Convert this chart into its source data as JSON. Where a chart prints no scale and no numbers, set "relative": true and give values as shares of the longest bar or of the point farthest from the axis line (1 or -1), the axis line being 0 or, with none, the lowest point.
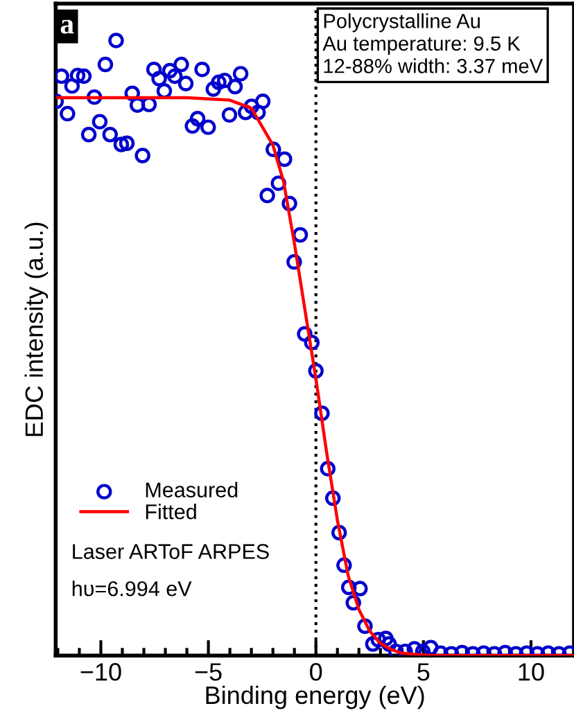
{
  "chart_data": {
    "type": "scatter",
    "xlabel": "Binding energy (eV)",
    "ylabel": "EDC intensity (a.u.)",
    "relative": true,
    "xlim": [
      -12.1,
      12
    ],
    "xticks": [
      {
        "value": -10,
        "label": "−10"
      },
      {
        "value": -5,
        "label": "−5"
      },
      0,
      5,
      10
    ],
    "tick_labels": "x",
    "grid": false,
    "legend": "bottom left",
    "annotations": [
      "a",
      "Polycrystalline Au\nAu temperature: 9.5 K\n12-88% width: 3.37 meV",
      "Laser ARToF ARPES",
      "hυ=6.994 eV"
    ],
    "ref_lines": [
      {
        "axis": "x",
        "value": 0,
        "label": null,
        "color": "#000000",
        "line_style": "dotted"
      }
    ],
    "series": [
      {
        "name": "Measured",
        "color": "#0000cc",
        "marker": "circle",
        "x": [
          -12.08,
          -11.83,
          -11.55,
          -11.34,
          -11.08,
          -10.79,
          -10.56,
          -10.3,
          -10.05,
          -9.79,
          -9.57,
          -9.29,
          -9.05,
          -8.79,
          -8.54,
          -8.3,
          -8.06,
          -7.76,
          -7.53,
          -7.29,
          -7.05,
          -6.79,
          -6.56,
          -6.26,
          -6.05,
          -5.74,
          -5.5,
          -5.29,
          -5.01,
          -4.77,
          -4.52,
          -4.24,
          -4.02,
          -3.76,
          -3.5,
          -3.27,
          -2.99,
          -2.69,
          -2.47,
          -2.26,
          -1.98,
          -1.74,
          -1.46,
          -1.23,
          -1.01,
          -0.73,
          -0.52,
          -0.19,
          0,
          0.28,
          0.55,
          0.79,
          1.08,
          1.31,
          1.53,
          1.74,
          2.05,
          2.28,
          2.65,
          2.9,
          3.25,
          3.4,
          3.72,
          4.15,
          4.58,
          4.97,
          5.34,
          5.8,
          6.3,
          6.8,
          7.3,
          7.8,
          8.3,
          8.8,
          9.3,
          9.8,
          10.3,
          10.8,
          11.3,
          11.8
        ],
        "values": [
          0.901,
          0.942,
          0.881,
          0.926,
          0.943,
          0.942,
          0.847,
          0.908,
          0.868,
          0.961,
          0.847,
          1.0,
          0.831,
          0.833,
          0.914,
          0.895,
          0.813,
          0.896,
          0.953,
          0.938,
          0.918,
          0.951,
          0.942,
          0.961,
          0.93,
          0.861,
          0.873,
          0.953,
          0.859,
          0.921,
          0.932,
          0.935,
          0.879,
          0.925,
          0.946,
          0.883,
          0.893,
          0.883,
          0.901,
          0.748,
          0.823,
          0.768,
          0.807,
          0.735,
          0.64,
          0.684,
          0.523,
          0.509,
          0.463,
          0.394,
          0.304,
          0.256,
          0.2,
          0.147,
          0.111,
          0.086,
          0.109,
          0.048,
          0.019,
          0.026,
          0.028,
          0.019,
          0.007,
          0.007,
          0.011,
          0.007,
          0.013,
          0.004,
          0.003,
          0.005,
          0.003,
          0.004,
          0.003,
          0.005,
          0.003,
          0.004,
          0.003,
          0.004,
          0.003,
          0.004
        ]
      },
      {
        "name": "Fitted",
        "type": "line",
        "color": "#ff0000",
        "marker": "none",
        "line_style": "solid",
        "x": [
          -12,
          -6,
          -4,
          -3,
          -2,
          -1.5,
          -1,
          -0.5,
          0,
          0.5,
          1,
          1.5,
          2,
          2.5,
          3,
          3.5,
          4,
          5,
          6,
          12
        ],
        "values": [
          0.907,
          0.907,
          0.903,
          0.89,
          0.83,
          0.77,
          0.67,
          0.56,
          0.45,
          0.33,
          0.22,
          0.13,
          0.075,
          0.04,
          0.02,
          0.01,
          0.004,
          0.001,
          0,
          0
        ]
      }
    ]
  }
}
